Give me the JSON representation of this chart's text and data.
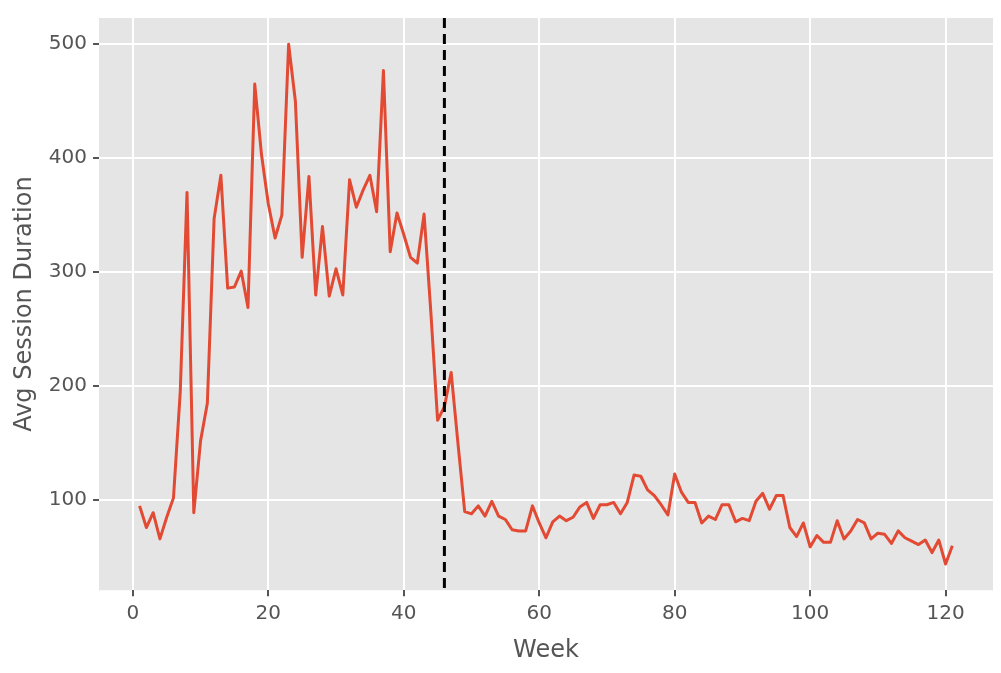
{
  "chart_data": {
    "type": "line",
    "xlabel": "Week",
    "ylabel": "Avg Session Duration",
    "x": [
      1,
      2,
      3,
      4,
      5,
      6,
      7,
      8,
      9,
      10,
      11,
      12,
      13,
      14,
      15,
      16,
      17,
      18,
      19,
      20,
      21,
      22,
      23,
      24,
      25,
      26,
      27,
      28,
      29,
      30,
      31,
      32,
      33,
      34,
      35,
      36,
      37,
      38,
      39,
      40,
      41,
      42,
      43,
      44,
      45,
      46,
      47,
      48,
      49,
      50,
      51,
      52,
      53,
      54,
      55,
      56,
      57,
      58,
      59,
      60,
      61,
      62,
      63,
      64,
      65,
      66,
      67,
      68,
      69,
      70,
      71,
      72,
      73,
      74,
      75,
      76,
      77,
      78,
      79,
      80,
      81,
      82,
      83,
      84,
      85,
      86,
      87,
      88,
      89,
      90,
      91,
      92,
      93,
      94,
      95,
      96,
      97,
      98,
      99,
      100,
      101,
      102,
      103,
      104,
      105,
      106,
      107,
      108,
      109,
      110,
      111,
      112,
      113,
      114,
      115,
      116,
      117,
      118,
      119,
      120,
      121
    ],
    "series": [
      {
        "color": "#e24a33",
        "values": [
          95,
          76,
          89,
          66,
          85,
          102,
          195,
          370,
          89,
          152,
          185,
          347,
          385,
          286,
          287,
          301,
          269,
          465,
          403,
          360,
          330,
          350,
          500,
          450,
          313,
          384,
          280,
          340,
          279,
          303,
          280,
          381,
          357,
          372,
          385,
          353,
          477,
          318,
          352,
          333,
          313,
          308,
          351,
          265,
          170,
          182,
          212,
          150,
          90,
          88,
          95,
          86,
          99,
          86,
          83,
          74,
          73,
          73,
          95,
          80,
          67,
          81,
          86,
          82,
          85,
          94,
          98,
          84,
          96,
          96,
          98,
          88,
          98,
          122,
          121,
          109,
          104,
          96,
          87,
          123,
          107,
          98,
          98,
          80,
          86,
          83,
          96,
          96,
          81,
          84,
          82,
          99,
          106,
          92,
          104,
          104,
          76,
          68,
          80,
          59,
          69,
          63,
          63,
          82,
          66,
          73,
          83,
          80,
          66,
          71,
          70,
          62,
          73,
          67,
          64,
          61,
          65,
          54,
          65,
          44,
          60
        ]
      }
    ],
    "xlim": [
      -5,
      127
    ],
    "xticks": [
      0,
      20,
      40,
      60,
      80,
      100,
      120
    ],
    "ylim": [
      21,
      523
    ],
    "yticks": [
      100,
      200,
      300,
      400,
      500
    ],
    "ref_lines": [
      {
        "axis": "x",
        "value": 46,
        "color": "#000000",
        "line_style": "dashed"
      }
    ],
    "grid": true,
    "legend": false,
    "marker": "none",
    "line_style": "solid"
  }
}
